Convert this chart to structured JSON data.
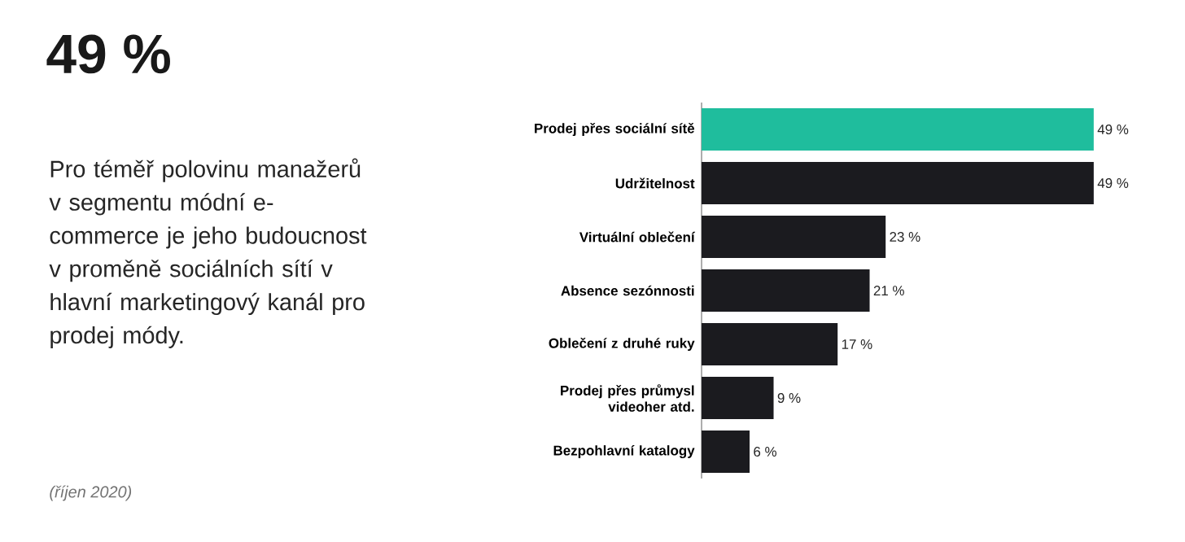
{
  "chart_data": {
    "type": "bar",
    "orientation": "horizontal",
    "title": "49 %",
    "subtitle": "Pro téměř polovinu manažerů v segmentu módní e-commerce je jeho budoucnost v proměně sociálních sítí v hlavní marketingový kanál pro prodej módy.",
    "categories": [
      "Prodej přes sociální sítě",
      "Udržitelnost",
      "Virtuální oblečení",
      "Absence sezónnosti",
      "Oblečení z druhé ruky",
      "Prodej přes průmysl videoher atd.",
      "Bezpohlavní katalogy"
    ],
    "values": [
      49,
      49,
      23,
      21,
      17,
      9,
      6
    ],
    "colors": [
      "#1fbd9d",
      "#1b1b1f",
      "#1b1b1f",
      "#1b1b1f",
      "#1b1b1f",
      "#1b1b1f",
      "#1b1b1f"
    ],
    "value_labels": [
      "49 %",
      "49 %",
      "23 %",
      "21 %",
      "17 %",
      "9 %",
      "6 %"
    ],
    "annotations": [
      "(říjen 2020)"
    ]
  }
}
